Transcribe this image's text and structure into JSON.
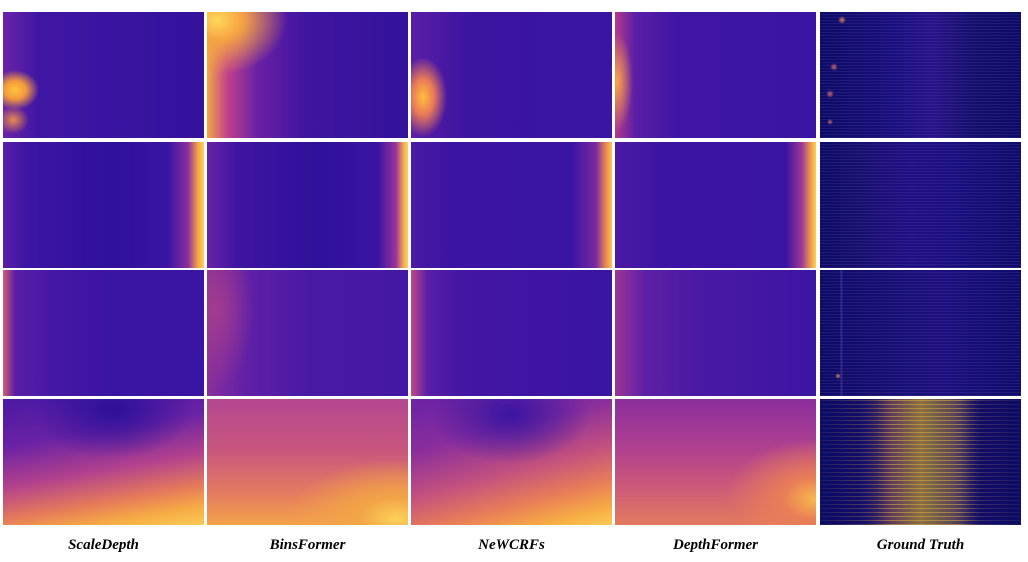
{
  "figure": {
    "columns": [
      {
        "label": "ScaleDepth"
      },
      {
        "label": "BinsFormer"
      },
      {
        "label": "NeWCRFs"
      },
      {
        "label": "DepthFormer"
      },
      {
        "label": "Ground Truth"
      }
    ],
    "rows": 4,
    "colormap": "plasma"
  }
}
